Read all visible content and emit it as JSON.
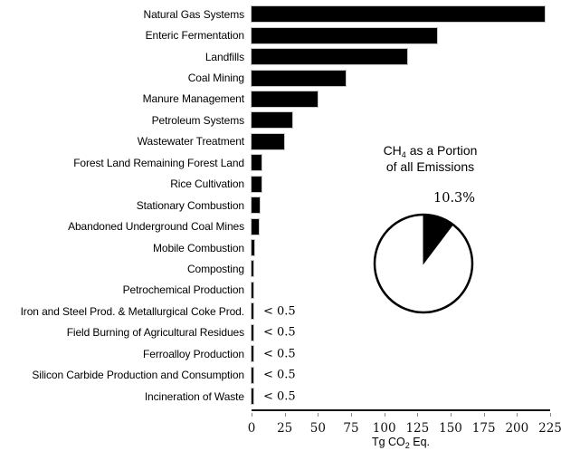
{
  "chart_data": [
    {
      "type": "bar",
      "orientation": "horizontal",
      "categories": [
        "Natural Gas Systems",
        "Enteric Fermentation",
        "Landfills",
        "Coal Mining",
        "Manure Management",
        "Petroleum Systems",
        "Wastewater Treatment",
        "Forest Land Remaining Forest Land",
        "Rice Cultivation",
        "Stationary Combustion",
        "Abandoned Underground Coal Mines",
        "Mobile Combustion",
        "Composting",
        "Petrochemical Production",
        "Iron and Steel Prod. & Metallurgical Coke Prod.",
        "Field Burning of Agricultural Residues",
        "Ferroalloy Production",
        "Silicon Carbide Production and Consumption",
        "Incineration of Waste"
      ],
      "values": [
        221.2,
        139.8,
        117.5,
        71.0,
        49.5,
        30.9,
        24.5,
        7.8,
        7.3,
        6.2,
        5.5,
        2.0,
        1.7,
        0.9,
        0.4,
        0.4,
        0.4,
        0.4,
        0.4
      ],
      "annotations": [
        "",
        "",
        "",
        "",
        "",
        "",
        "",
        "",
        "",
        "",
        "",
        "",
        "",
        "",
        "< 0.5",
        "< 0.5",
        "< 0.5",
        "< 0.5",
        "< 0.5"
      ],
      "bar_color": "#000000",
      "xlabel": "Tg CO2 Eq.",
      "xlabel_parts": {
        "pre": "Tg CO",
        "sub": "2",
        "post": " Eq."
      },
      "xlim": [
        0,
        225
      ],
      "xticks": [
        0,
        25,
        50,
        75,
        100,
        125,
        150,
        175,
        200,
        225
      ],
      "grid": false,
      "legend_position": "none"
    },
    {
      "type": "pie",
      "title": "CH4 as a Portion of all Emissions",
      "title_parts": {
        "line1_pre": "CH",
        "line1_sub": "4",
        "line1_post": " as a Portion",
        "line2": "of all Emissions"
      },
      "label": "10.3%",
      "slices": [
        {
          "name": "CH4",
          "value": 10.3,
          "color": "#000000"
        },
        {
          "name": "All other emissions",
          "value": 89.7,
          "color": "#ffffff"
        }
      ]
    }
  ]
}
